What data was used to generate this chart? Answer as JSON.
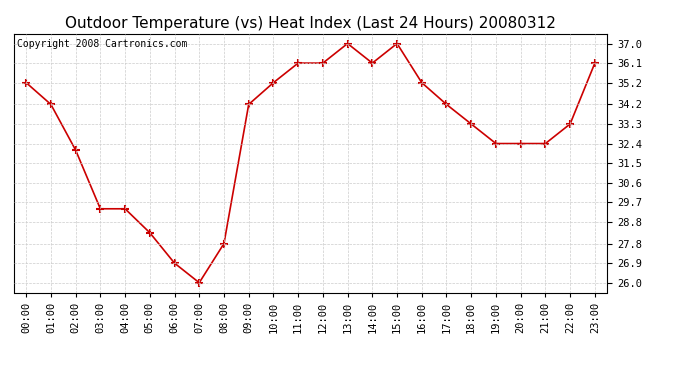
{
  "title": "Outdoor Temperature (vs) Heat Index (Last 24 Hours) 20080312",
  "copyright_text": "Copyright 2008 Cartronics.com",
  "x_labels": [
    "00:00",
    "01:00",
    "02:00",
    "03:00",
    "04:00",
    "05:00",
    "06:00",
    "07:00",
    "08:00",
    "09:00",
    "10:00",
    "11:00",
    "12:00",
    "13:00",
    "14:00",
    "15:00",
    "16:00",
    "17:00",
    "18:00",
    "19:00",
    "20:00",
    "21:00",
    "22:00",
    "23:00"
  ],
  "y_values": [
    35.2,
    34.2,
    32.1,
    29.4,
    29.4,
    28.3,
    26.9,
    26.0,
    27.8,
    34.2,
    35.2,
    36.1,
    36.1,
    37.0,
    36.1,
    37.0,
    35.2,
    34.2,
    33.3,
    32.4,
    32.4,
    32.4,
    33.3,
    36.1
  ],
  "y_ticks": [
    26.0,
    26.9,
    27.8,
    28.8,
    29.7,
    30.6,
    31.5,
    32.4,
    33.3,
    34.2,
    35.2,
    36.1,
    37.0
  ],
  "y_min": 25.55,
  "y_max": 37.45,
  "line_color": "#cc0000",
  "marker": "+",
  "marker_size": 6,
  "marker_color": "#cc0000",
  "background_color": "#ffffff",
  "grid_color": "#cccccc",
  "title_fontsize": 11,
  "tick_fontsize": 7.5,
  "copyright_fontsize": 7
}
